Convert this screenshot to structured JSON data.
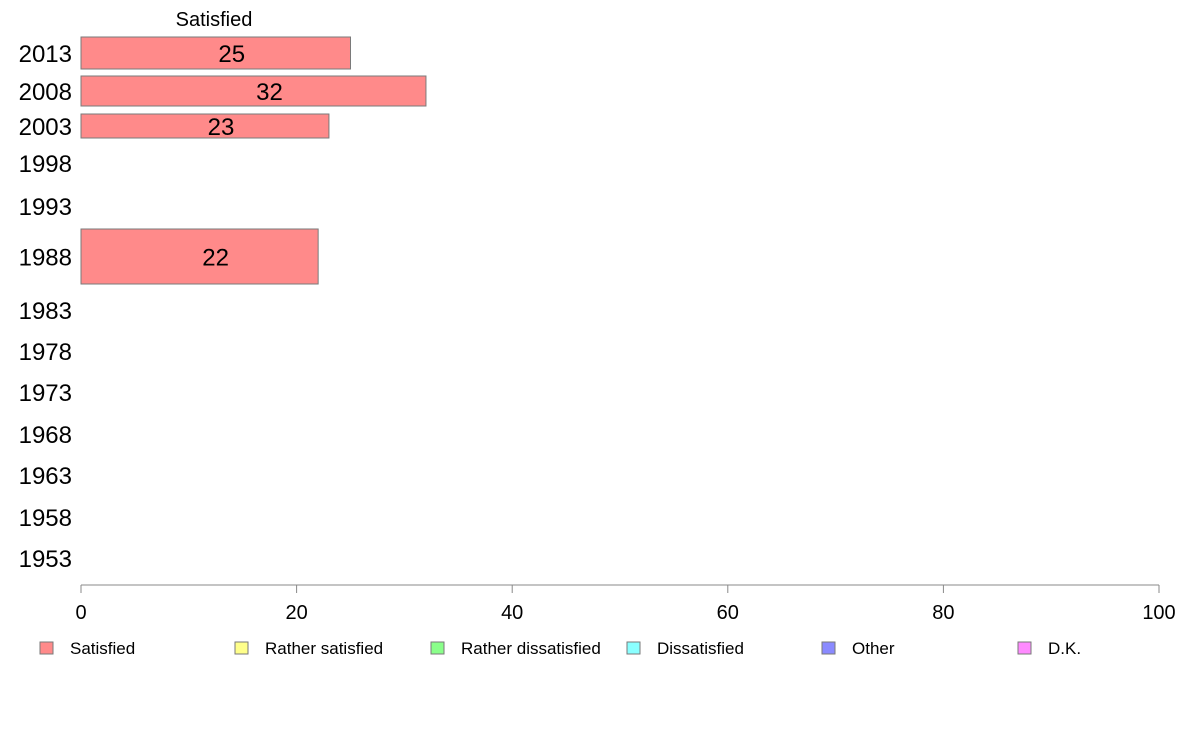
{
  "chart_data": {
    "type": "bar",
    "orientation": "horizontal",
    "stacked": true,
    "column_header": "Satisfied",
    "categories": [
      "2013",
      "2008",
      "2003",
      "1998",
      "1993",
      "1988",
      "1983",
      "1978",
      "1973",
      "1968",
      "1963",
      "1958",
      "1953"
    ],
    "series": [
      {
        "name": "Satisfied",
        "color": "#ff8a8a",
        "values": [
          25,
          32,
          23,
          null,
          null,
          22,
          null,
          null,
          null,
          null,
          null,
          null,
          null
        ]
      },
      {
        "name": "Rather satisfied",
        "color": "#ffff8a",
        "values": [
          null,
          null,
          null,
          null,
          null,
          null,
          null,
          null,
          null,
          null,
          null,
          null,
          null
        ]
      },
      {
        "name": "Rather dissatisfied",
        "color": "#8aff8a",
        "values": [
          null,
          null,
          null,
          null,
          null,
          null,
          null,
          null,
          null,
          null,
          null,
          null,
          null
        ]
      },
      {
        "name": "Dissatisfied",
        "color": "#8affff",
        "values": [
          null,
          null,
          null,
          null,
          null,
          null,
          null,
          null,
          null,
          null,
          null,
          null,
          null
        ]
      },
      {
        "name": "Other",
        "color": "#8a8aff",
        "values": [
          null,
          null,
          null,
          null,
          null,
          null,
          null,
          null,
          null,
          null,
          null,
          null,
          null
        ]
      },
      {
        "name": "D.K.",
        "color": "#ff8aff",
        "values": [
          null,
          null,
          null,
          null,
          null,
          null,
          null,
          null,
          null,
          null,
          null,
          null,
          null
        ]
      }
    ],
    "bar_labels": [
      "25",
      "32",
      "23",
      "",
      "",
      "22",
      "",
      "",
      "",
      "",
      "",
      "",
      ""
    ],
    "xlim": [
      0,
      100
    ],
    "xticks": [
      "0",
      "20",
      "40",
      "60",
      "80",
      "100"
    ],
    "legend_position": "bottom",
    "grid": false
  }
}
